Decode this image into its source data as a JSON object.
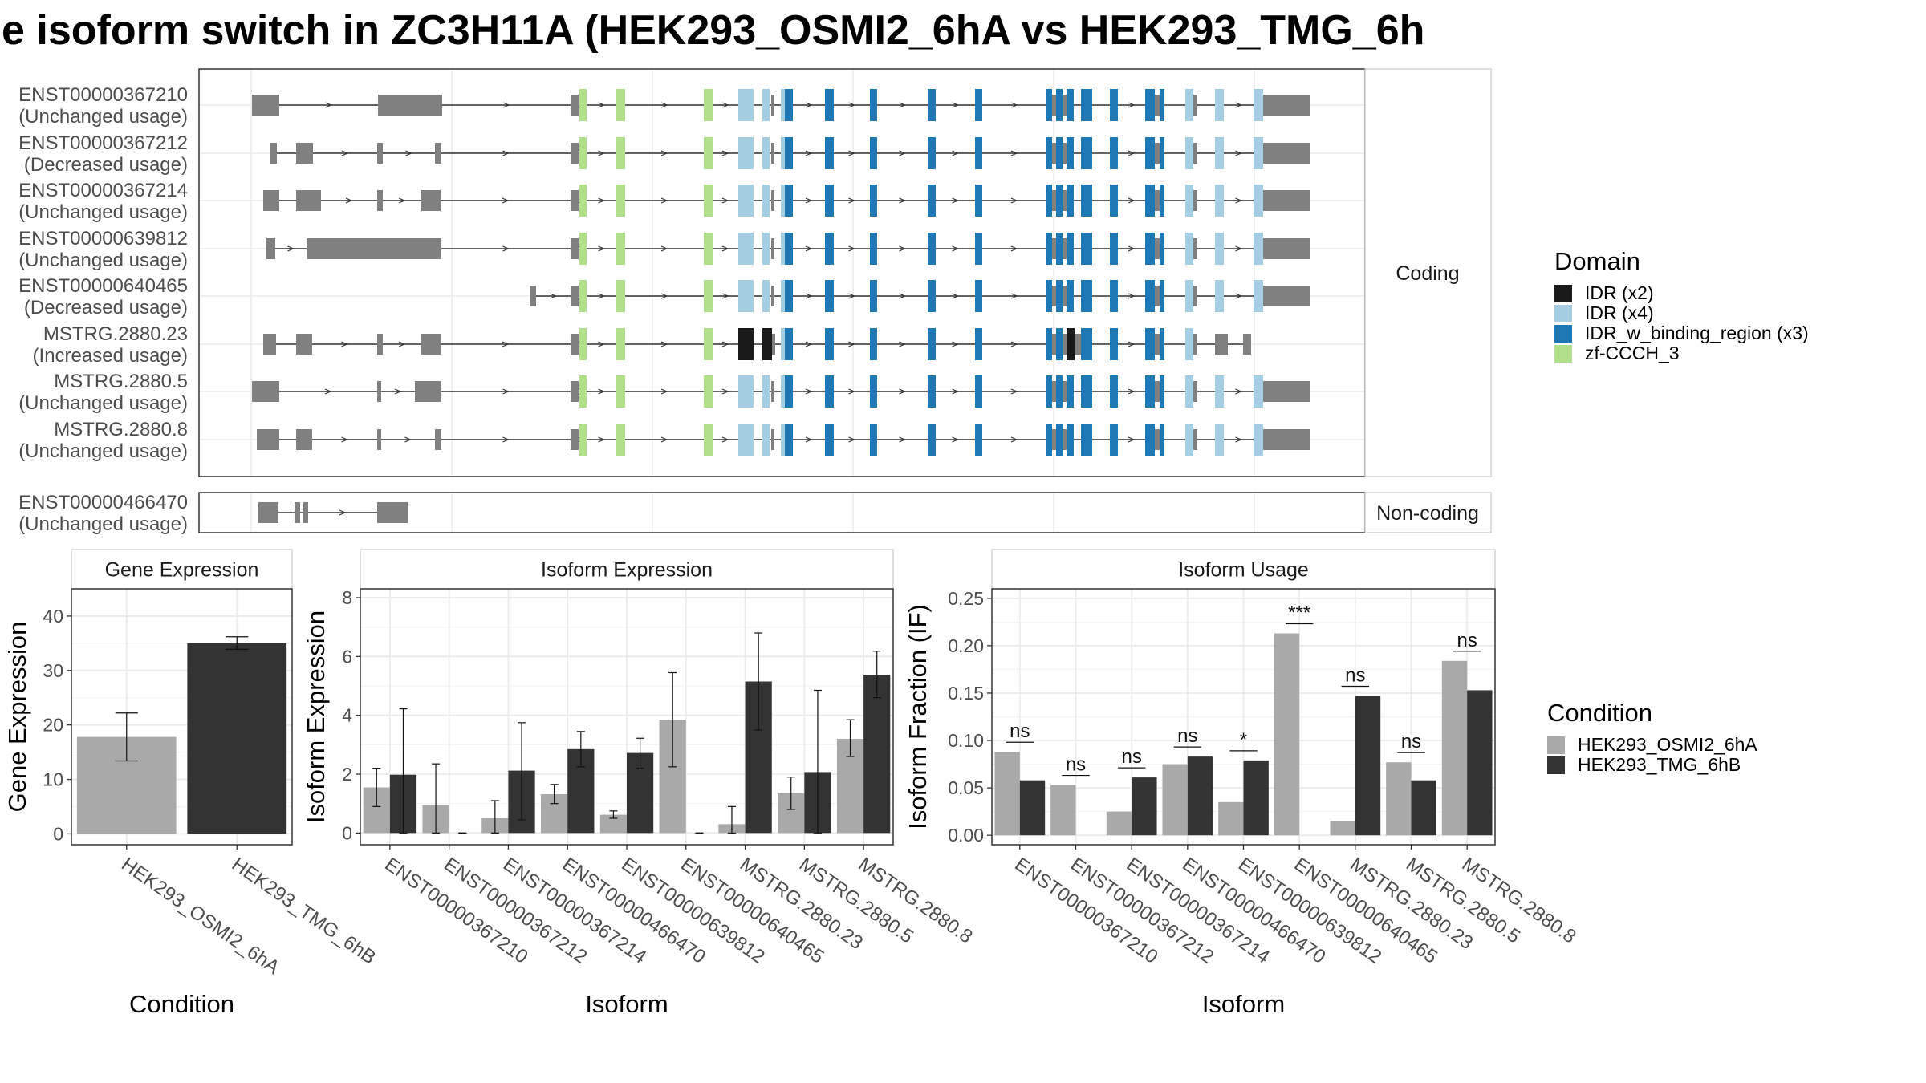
{
  "title": "e isoform switch in ZC3H11A (HEK293_OSMI2_6hA vs HEK293_TMG_6h",
  "colors": {
    "IDR": "#1a1a1a",
    "IDR_light": "#a6cee3",
    "IDR_binding": "#1f78b4",
    "zf": "#b2df8a",
    "exon": "#808080",
    "cond1": "#a9a9a9",
    "cond2": "#333333"
  },
  "structure": {
    "coding_label": "Coding",
    "noncoding_label": "Non-coding",
    "coding_transcripts": [
      {
        "id": "ENST00000367210",
        "usage": "(Unchanged usage)"
      },
      {
        "id": "ENST00000367212",
        "usage": "(Decreased usage)"
      },
      {
        "id": "ENST00000367214",
        "usage": "(Unchanged usage)"
      },
      {
        "id": "ENST00000639812",
        "usage": "(Unchanged usage)"
      },
      {
        "id": "ENST00000640465",
        "usage": "(Decreased usage)"
      },
      {
        "id": "MSTRG.2880.23",
        "usage": "(Increased usage)"
      },
      {
        "id": "MSTRG.2880.5",
        "usage": "(Unchanged usage)"
      },
      {
        "id": "MSTRG.2880.8",
        "usage": "(Unchanged usage)"
      }
    ],
    "noncoding_transcripts": [
      {
        "id": "ENST00000466470",
        "usage": "(Unchanged usage)"
      }
    ]
  },
  "legend_domain": {
    "title": "Domain",
    "items": [
      {
        "label": "IDR (x2)",
        "color": "#1a1a1a"
      },
      {
        "label": "IDR (x4)",
        "color": "#a6cee3"
      },
      {
        "label": "IDR_w_binding_region (x3)",
        "color": "#1f78b4"
      },
      {
        "label": "zf-CCCH_3",
        "color": "#b2df8a"
      }
    ]
  },
  "legend_condition": {
    "title": "Condition",
    "items": [
      {
        "label": "HEK293_OSMI2_6hA",
        "color": "#a9a9a9"
      },
      {
        "label": "HEK293_TMG_6hB",
        "color": "#333333"
      }
    ]
  },
  "chart_data": [
    {
      "type": "bar",
      "title": "Gene Expression",
      "xlabel": "Condition",
      "ylabel": "Gene Expression",
      "categories": [
        "HEK293_OSMI2_6hA",
        "HEK293_TMG_6hB"
      ],
      "values": [
        17.8,
        35.0
      ],
      "errors": [
        [
          13.4,
          22.2
        ],
        [
          33.9,
          36.2
        ]
      ],
      "ylim": [
        -2,
        45
      ],
      "yticks": [
        0,
        10,
        20,
        30,
        40
      ]
    },
    {
      "type": "bar",
      "title": "Isoform Expression",
      "xlabel": "Isoform",
      "ylabel": "Isoform Expression",
      "categories": [
        "ENST00000367210",
        "ENST00000367212",
        "ENST00000367214",
        "ENST00000466470",
        "ENST00000639812",
        "ENST00000640465",
        "MSTRG.2880.23",
        "MSTRG.2880.5",
        "MSTRG.2880.8"
      ],
      "series": [
        {
          "name": "HEK293_OSMI2_6hA",
          "values": [
            1.55,
            0.95,
            0.5,
            1.32,
            0.62,
            3.85,
            0.3,
            1.35,
            3.2
          ],
          "errors": [
            [
              0.9,
              2.2
            ],
            [
              0,
              2.35
            ],
            [
              0,
              1.1
            ],
            [
              1.0,
              1.65
            ],
            [
              0.5,
              0.75
            ],
            [
              2.25,
              5.45
            ],
            [
              0,
              0.9
            ],
            [
              0.8,
              1.9
            ],
            [
              2.6,
              3.85
            ]
          ]
        },
        {
          "name": "HEK293_TMG_6hB",
          "values": [
            1.98,
            0.0,
            2.12,
            2.85,
            2.72,
            0.0,
            5.15,
            2.07,
            5.38
          ],
          "errors": [
            [
              0,
              4.22
            ],
            [
              0,
              0
            ],
            [
              0.45,
              3.75
            ],
            [
              2.25,
              3.45
            ],
            [
              2.2,
              3.22
            ],
            [
              0,
              0
            ],
            [
              3.5,
              6.8
            ],
            [
              0,
              4.85
            ],
            [
              4.6,
              6.18
            ]
          ]
        }
      ],
      "ylim": [
        -0.4,
        8.3
      ],
      "yticks": [
        0,
        2,
        4,
        6,
        8
      ]
    },
    {
      "type": "bar",
      "title": "Isoform Usage",
      "xlabel": "Isoform",
      "ylabel": "Isoform Fraction (IF)",
      "categories": [
        "ENST00000367210",
        "ENST00000367212",
        "ENST00000367214",
        "ENST00000466470",
        "ENST00000639812",
        "ENST00000640465",
        "MSTRG.2880.23",
        "MSTRG.2880.5",
        "MSTRG.2880.8"
      ],
      "series": [
        {
          "name": "HEK293_OSMI2_6hA",
          "values": [
            0.088,
            0.053,
            0.025,
            0.075,
            0.035,
            0.213,
            0.015,
            0.077,
            0.184
          ]
        },
        {
          "name": "HEK293_TMG_6hB",
          "values": [
            0.058,
            0.0,
            0.061,
            0.083,
            0.079,
            0.0,
            0.147,
            0.058,
            0.153
          ]
        }
      ],
      "significance": [
        "ns",
        "ns",
        "ns",
        "ns",
        "*",
        "***",
        "ns",
        "ns",
        "ns"
      ],
      "ylim": [
        -0.01,
        0.26
      ],
      "yticks": [
        0.0,
        0.05,
        0.1,
        0.15,
        0.2,
        0.25
      ],
      "ytick_labels": [
        "0.00",
        "0.05",
        "0.10",
        "0.15",
        "0.20",
        "0.25"
      ]
    }
  ]
}
